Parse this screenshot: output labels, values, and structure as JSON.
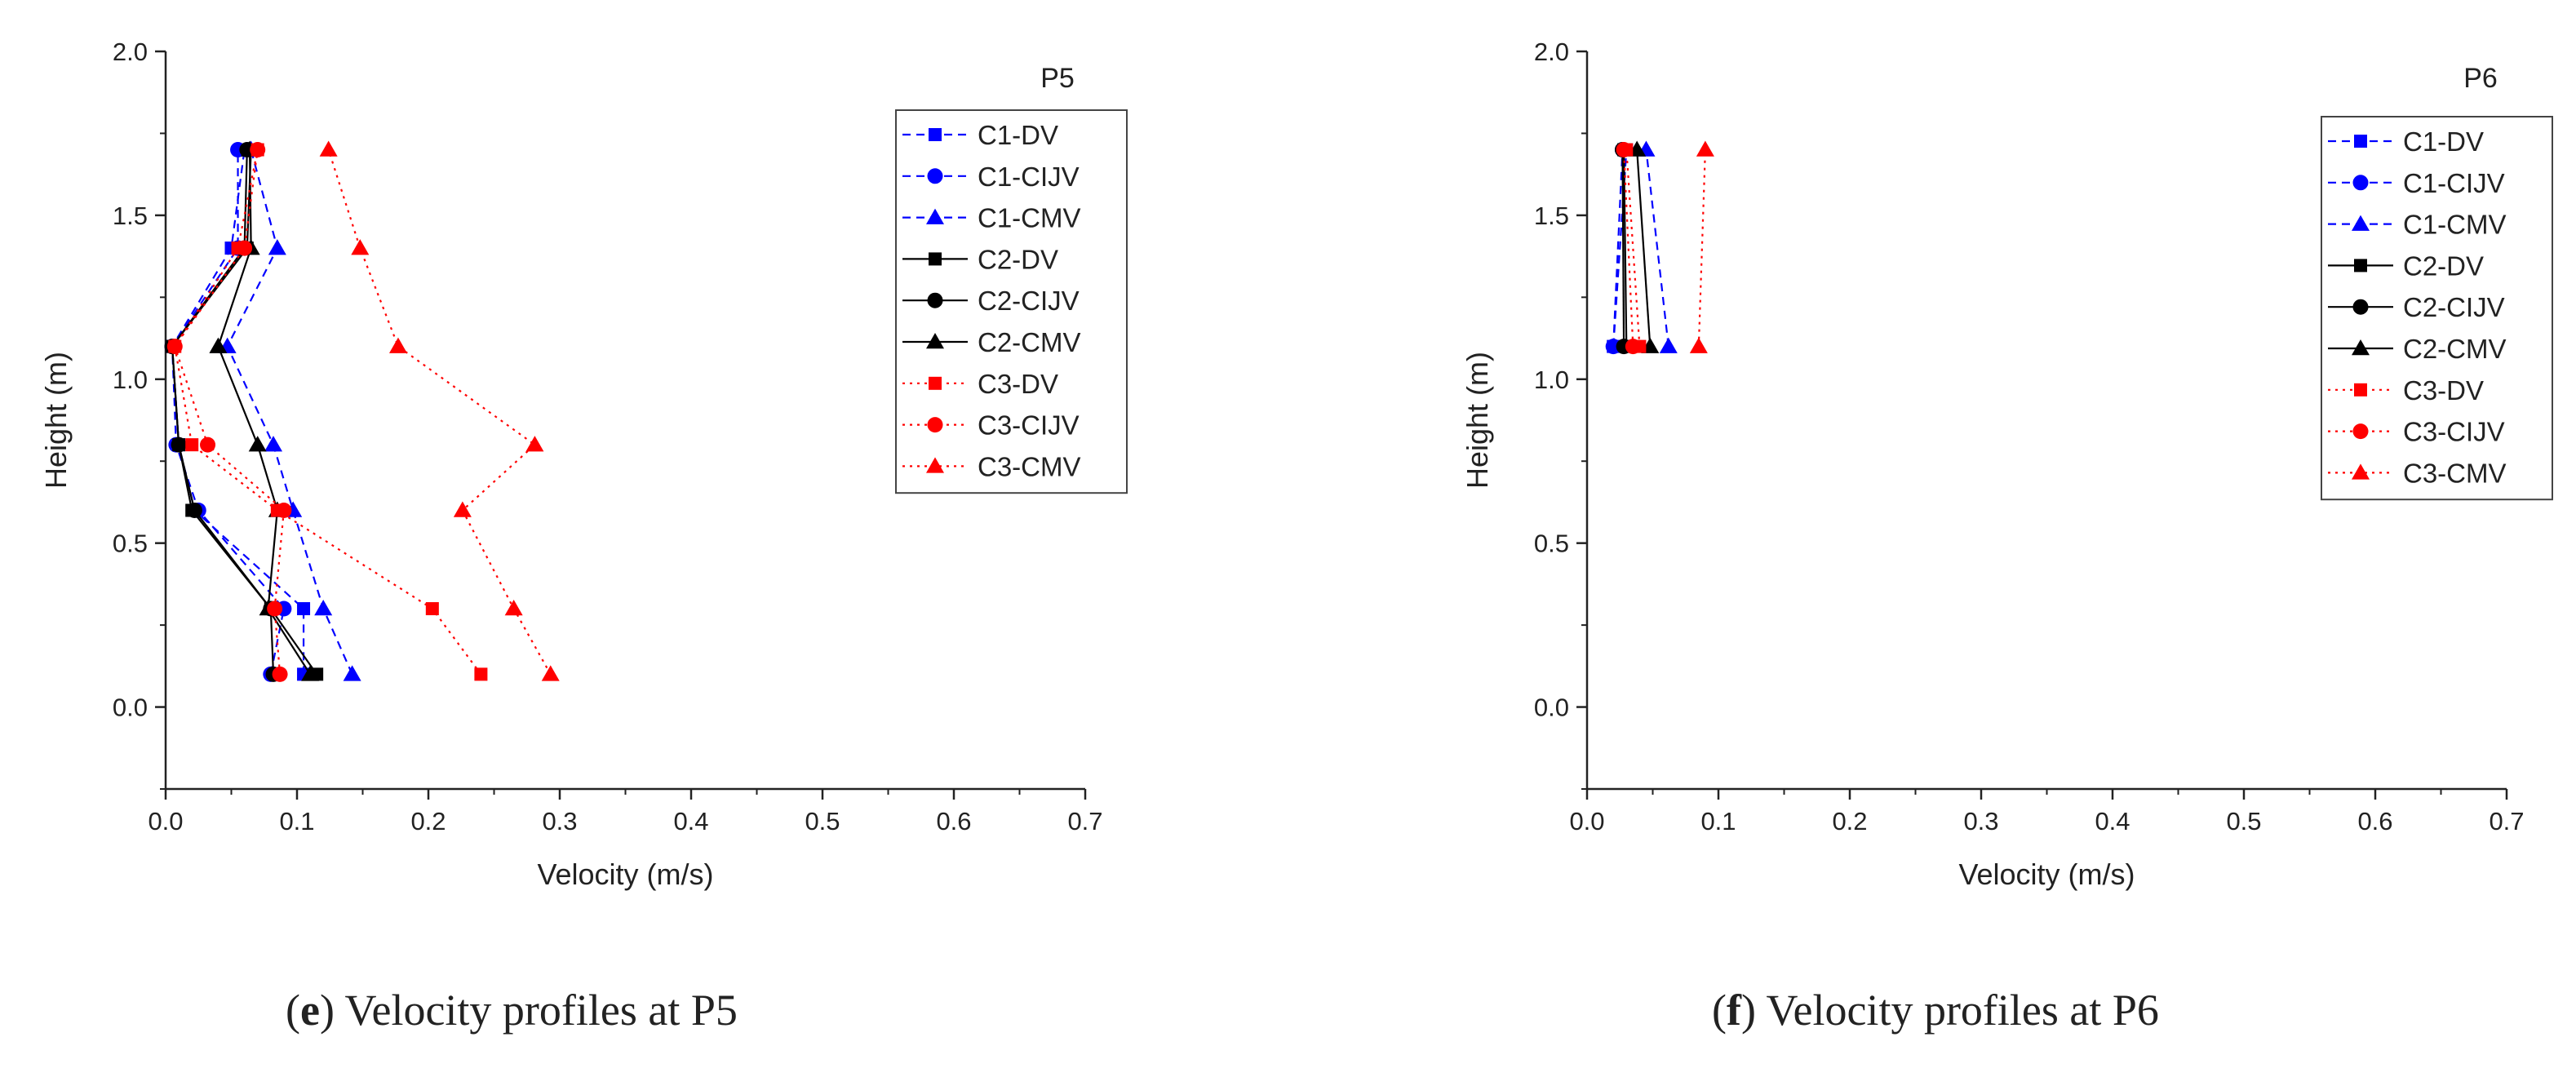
{
  "chart_data": [
    {
      "type": "line",
      "panel_tag": "P5",
      "caption_letter": "e",
      "caption_text": "Velocity profiles at P5",
      "xlabel": "Velocity (m/s)",
      "ylabel": "Height (m)",
      "xlim": [
        0.0,
        0.7
      ],
      "ylim": [
        -0.25,
        2.0
      ],
      "xticks": [
        "0.0",
        "0.1",
        "0.2",
        "0.3",
        "0.4",
        "0.5",
        "0.6",
        "0.7"
      ],
      "yticks": [
        "0.0",
        "0.5",
        "1.0",
        "1.5",
        "2.0"
      ],
      "legend_position": "top-right",
      "series": [
        {
          "name": "C1-DV",
          "color": "#0000ff",
          "dash": "dash",
          "marker": "square",
          "x": [
            0.105,
            0.105,
            0.022,
            0.01,
            0.005,
            0.05,
            0.06
          ],
          "y": [
            0.1,
            0.3,
            0.6,
            0.8,
            1.1,
            1.4,
            1.7
          ]
        },
        {
          "name": "C1-CIJV",
          "color": "#0000ff",
          "dash": "dash",
          "marker": "circle",
          "x": [
            0.08,
            0.09,
            0.025,
            0.008,
            0.005,
            0.055,
            0.055
          ],
          "y": [
            0.1,
            0.3,
            0.6,
            0.8,
            1.1,
            1.4,
            1.7
          ]
        },
        {
          "name": "C1-CMV",
          "color": "#0000ff",
          "dash": "dash",
          "marker": "triangle",
          "x": [
            0.142,
            0.12,
            0.097,
            0.082,
            0.047,
            0.085,
            0.065
          ],
          "y": [
            0.1,
            0.3,
            0.6,
            0.8,
            1.1,
            1.4,
            1.7
          ]
        },
        {
          "name": "C2-DV",
          "color": "#000000",
          "dash": "solid",
          "marker": "square",
          "x": [
            0.115,
            0.08,
            0.02,
            0.01,
            0.005,
            0.062,
            0.065
          ],
          "y": [
            0.1,
            0.3,
            0.6,
            0.8,
            1.1,
            1.4,
            1.7
          ]
        },
        {
          "name": "C2-CIJV",
          "color": "#000000",
          "dash": "solid",
          "marker": "circle",
          "x": [
            0.082,
            0.08,
            0.022,
            0.01,
            0.005,
            0.06,
            0.062
          ],
          "y": [
            0.1,
            0.3,
            0.6,
            0.8,
            1.1,
            1.4,
            1.7
          ]
        },
        {
          "name": "C2-CMV",
          "color": "#000000",
          "dash": "solid",
          "marker": "triangle",
          "x": [
            0.11,
            0.078,
            0.085,
            0.07,
            0.04,
            0.065,
            0.064
          ],
          "y": [
            0.1,
            0.3,
            0.6,
            0.8,
            1.1,
            1.4,
            1.7
          ]
        },
        {
          "name": "C3-DV",
          "color": "#ff0000",
          "dash": "dot",
          "marker": "square",
          "x": [
            0.24,
            0.203,
            0.085,
            0.02,
            0.007,
            0.055,
            0.07
          ],
          "y": [
            0.1,
            0.3,
            0.6,
            0.8,
            1.1,
            1.4,
            1.7
          ]
        },
        {
          "name": "C3-CIJV",
          "color": "#ff0000",
          "dash": "dot",
          "marker": "circle",
          "x": [
            0.087,
            0.083,
            0.09,
            0.032,
            0.007,
            0.06,
            0.07
          ],
          "y": [
            0.1,
            0.3,
            0.6,
            0.8,
            1.1,
            1.4,
            1.7
          ]
        },
        {
          "name": "C3-CMV",
          "color": "#ff0000",
          "dash": "dot",
          "marker": "triangle",
          "x": [
            0.293,
            0.265,
            0.226,
            0.281,
            0.177,
            0.148,
            0.124
          ],
          "y": [
            0.1,
            0.3,
            0.6,
            0.8,
            1.1,
            1.4,
            1.7
          ]
        }
      ]
    },
    {
      "type": "line",
      "panel_tag": "P6",
      "caption_letter": "f",
      "caption_text": "Velocity profiles at P6",
      "xlabel": "Velocity (m/s)",
      "ylabel": "Height (m)",
      "xlim": [
        0.0,
        0.7
      ],
      "ylim": [
        -0.25,
        2.0
      ],
      "xticks": [
        "0.0",
        "0.1",
        "0.2",
        "0.3",
        "0.4",
        "0.5",
        "0.6",
        "0.7"
      ],
      "yticks": [
        "0.0",
        "0.5",
        "1.0",
        "1.5",
        "2.0"
      ],
      "legend_position": "top-right",
      "series": [
        {
          "name": "C1-DV",
          "color": "#0000ff",
          "dash": "dash",
          "marker": "square",
          "x": [
            0.02,
            0.03
          ],
          "y": [
            1.1,
            1.7
          ]
        },
        {
          "name": "C1-CIJV",
          "color": "#0000ff",
          "dash": "dash",
          "marker": "circle",
          "x": [
            0.02,
            0.027
          ],
          "y": [
            1.1,
            1.7
          ]
        },
        {
          "name": "C1-CMV",
          "color": "#0000ff",
          "dash": "dash",
          "marker": "triangle",
          "x": [
            0.062,
            0.045
          ],
          "y": [
            1.1,
            1.7
          ]
        },
        {
          "name": "C2-DV",
          "color": "#000000",
          "dash": "solid",
          "marker": "square",
          "x": [
            0.03,
            0.028
          ],
          "y": [
            1.1,
            1.7
          ]
        },
        {
          "name": "C2-CIJV",
          "color": "#000000",
          "dash": "solid",
          "marker": "circle",
          "x": [
            0.028,
            0.027
          ],
          "y": [
            1.1,
            1.7
          ]
        },
        {
          "name": "C2-CMV",
          "color": "#000000",
          "dash": "solid",
          "marker": "triangle",
          "x": [
            0.048,
            0.038
          ],
          "y": [
            1.1,
            1.7
          ]
        },
        {
          "name": "C3-DV",
          "color": "#ff0000",
          "dash": "dot",
          "marker": "square",
          "x": [
            0.04,
            0.03
          ],
          "y": [
            1.1,
            1.7
          ]
        },
        {
          "name": "C3-CIJV",
          "color": "#ff0000",
          "dash": "dot",
          "marker": "circle",
          "x": [
            0.035,
            0.028
          ],
          "y": [
            1.1,
            1.7
          ]
        },
        {
          "name": "C3-CMV",
          "color": "#ff0000",
          "dash": "dot",
          "marker": "triangle",
          "x": [
            0.085,
            0.09
          ],
          "y": [
            1.1,
            1.7
          ]
        }
      ]
    }
  ]
}
